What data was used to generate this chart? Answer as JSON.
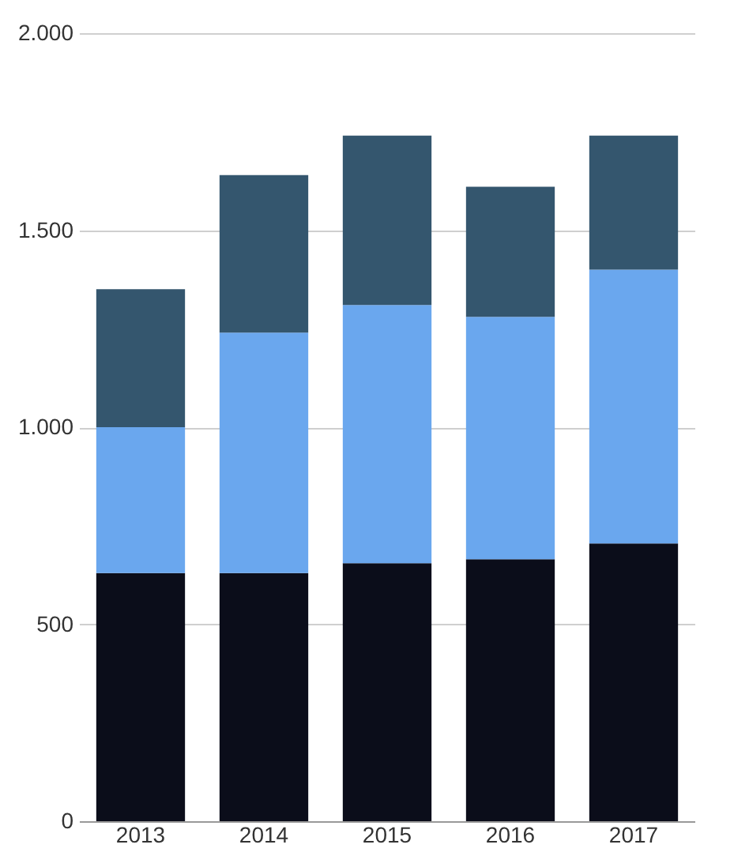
{
  "chart_data": {
    "type": "bar",
    "stacked": true,
    "categories": [
      "2013",
      "2014",
      "2015",
      "2016",
      "2017"
    ],
    "series": [
      {
        "color": "#0b0d1a",
        "values": [
          630,
          630,
          655,
          665,
          705
        ]
      },
      {
        "color": "#6aa7ee",
        "values": [
          370,
          610,
          655,
          615,
          695
        ]
      },
      {
        "color": "#34566e",
        "values": [
          350,
          400,
          430,
          330,
          340
        ]
      }
    ],
    "ylim": [
      0,
      2000
    ],
    "yticks": [
      {
        "value": 0,
        "label": "0"
      },
      {
        "value": 500,
        "label": "500"
      },
      {
        "value": 1000,
        "label": "1.000"
      },
      {
        "value": 1500,
        "label": "1.500"
      },
      {
        "value": 2000,
        "label": "2.000"
      }
    ],
    "grid": "y"
  }
}
